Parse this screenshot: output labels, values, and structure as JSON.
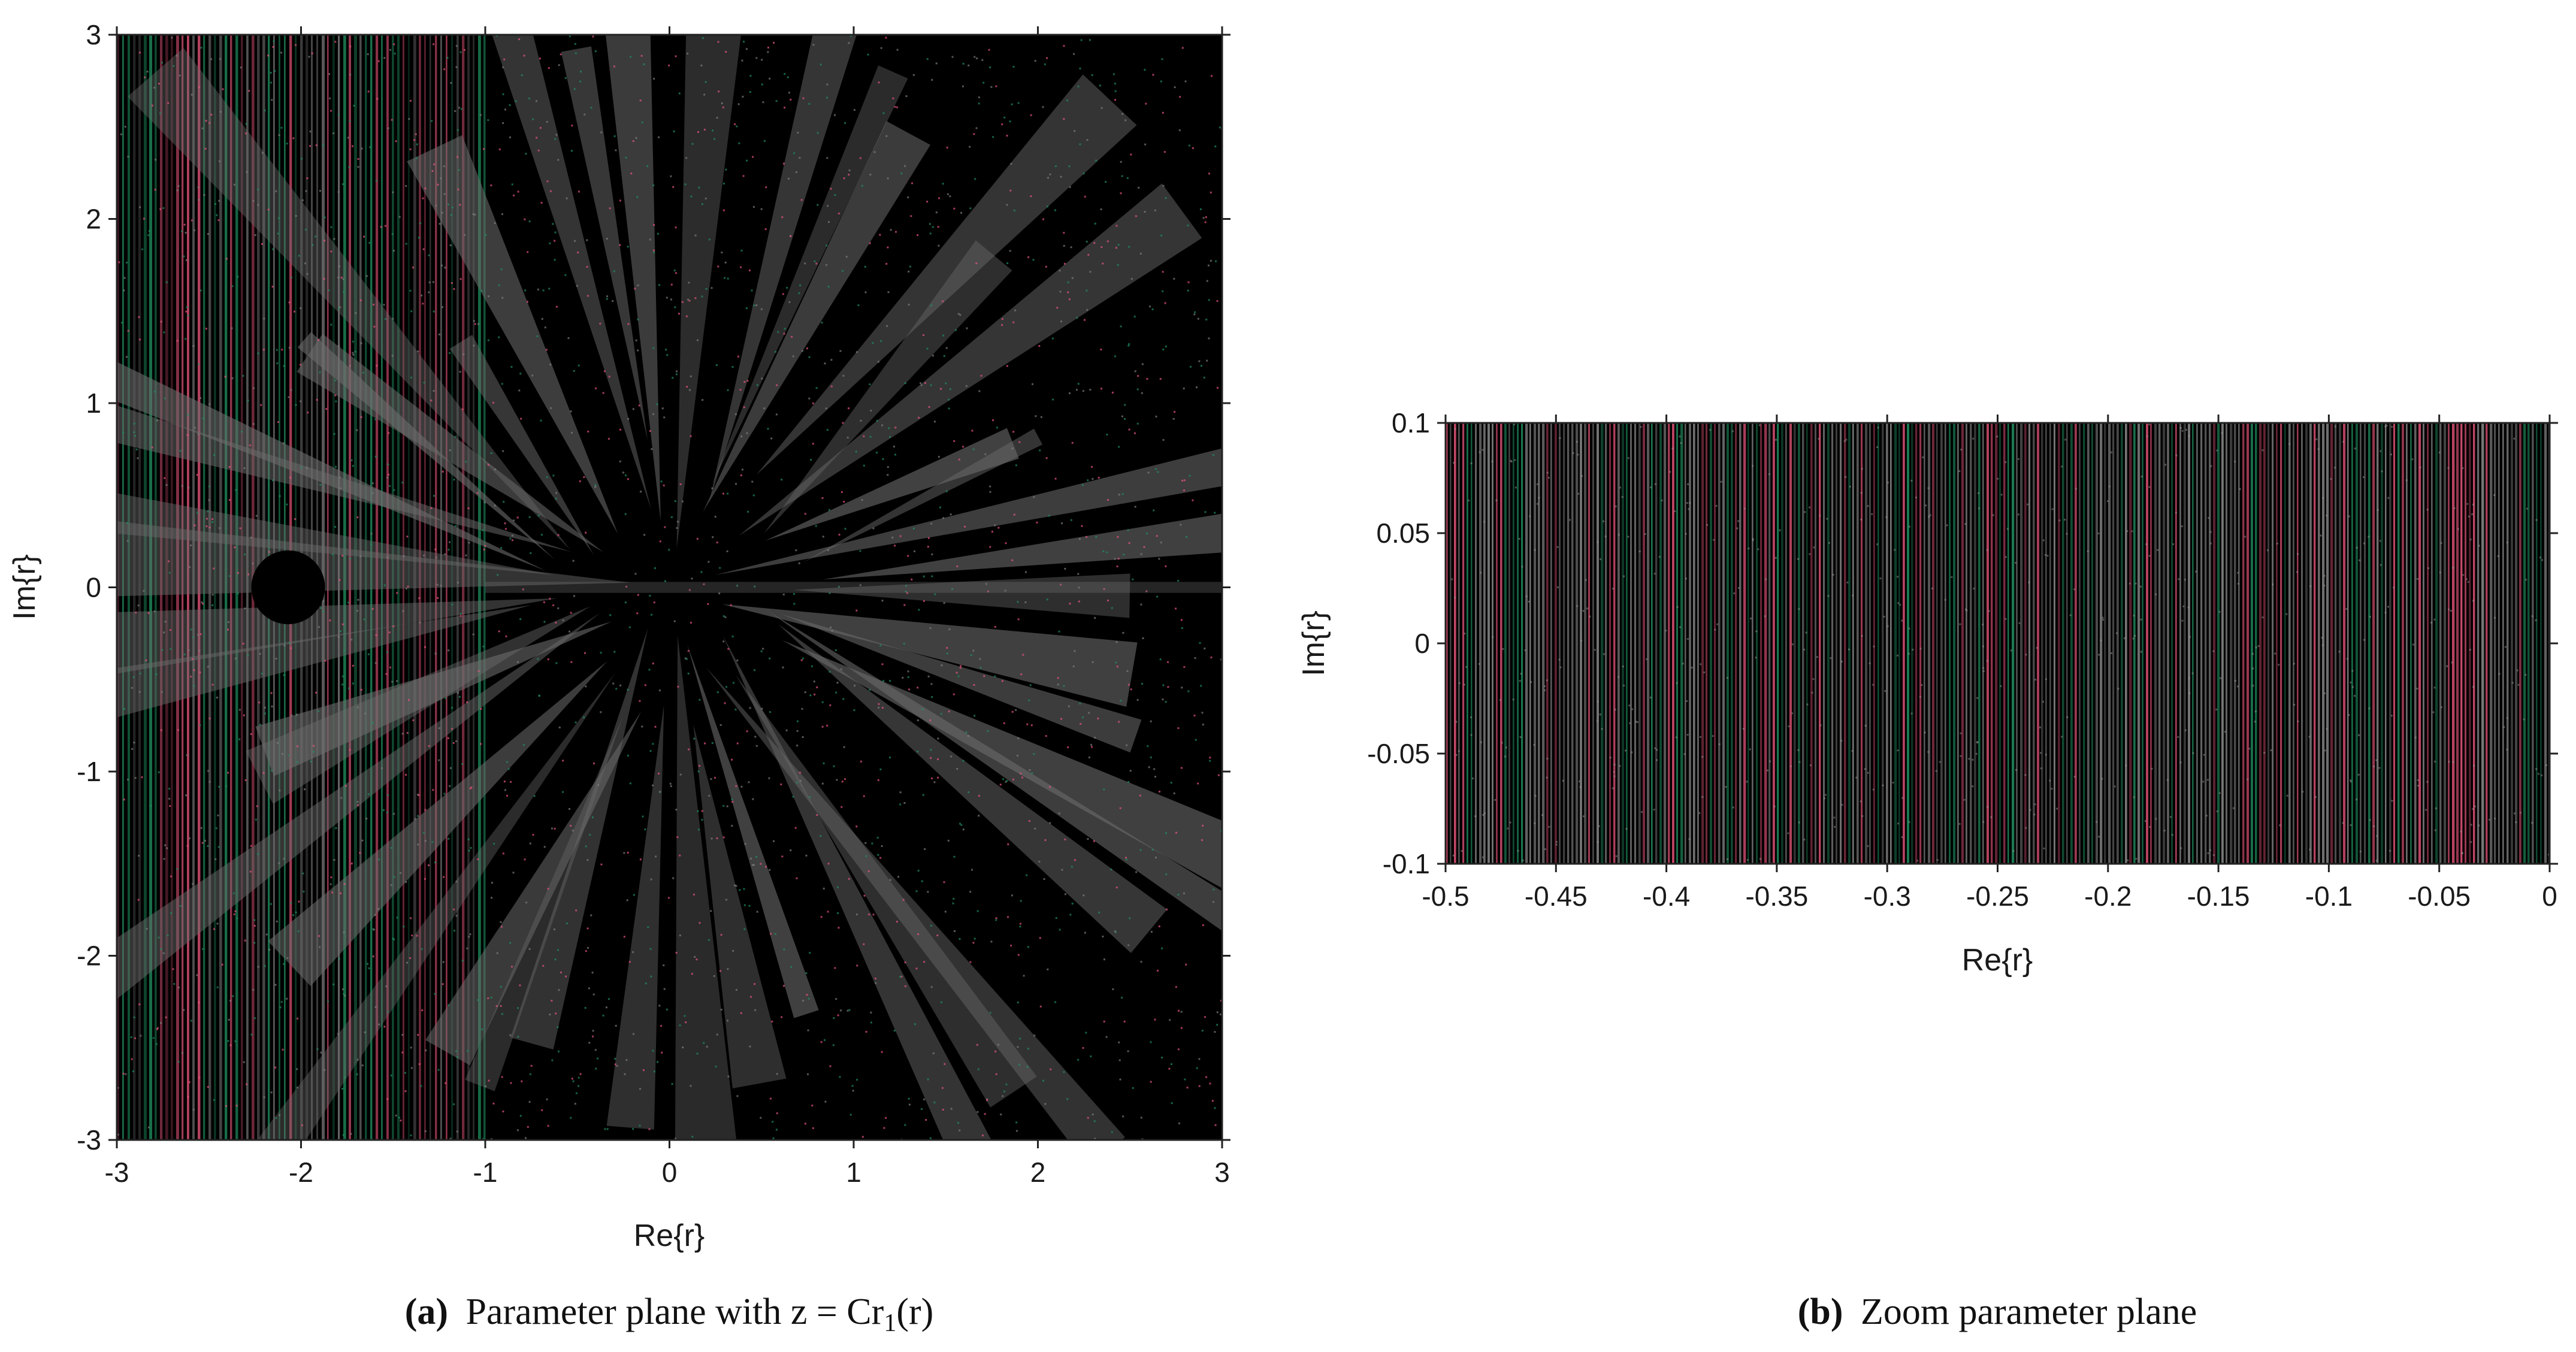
{
  "chart_data": [
    {
      "panel": "a",
      "type": "heatmap",
      "title": "",
      "xlabel": "Re{r}",
      "ylabel": "Im{r}",
      "xlim": [
        -3,
        3
      ],
      "ylim": [
        -3,
        3
      ],
      "xticks": [
        "-3",
        "-2",
        "-1",
        "0",
        "1",
        "2",
        "3"
      ],
      "yticks": [
        "-3",
        "-2",
        "-1",
        "0",
        "1",
        "2",
        "3"
      ],
      "grid": false,
      "colors": {
        "background": "#000000",
        "red": "#e8557a",
        "green": "#1f8f5f",
        "gray": "#7d7d7d"
      },
      "striped_region_x": [
        -3,
        -1
      ],
      "black_disk": {
        "center": [
          -2.07,
          0
        ],
        "radius": 0.2
      },
      "caption_label": "(a)",
      "caption_text": "Parameter plane with z = Cr",
      "caption_sub": "1",
      "caption_tail": "(r)"
    },
    {
      "panel": "b",
      "type": "heatmap",
      "title": "",
      "xlabel": "Re{r}",
      "ylabel": "Im{r}",
      "xlim": [
        -0.5,
        0
      ],
      "ylim": [
        -0.1,
        0.1
      ],
      "xticks": [
        "-0.5",
        "-0.45",
        "-0.4",
        "-0.35",
        "-0.3",
        "-0.25",
        "-0.2",
        "-0.15",
        "-0.1",
        "-0.05",
        "0"
      ],
      "yticks": [
        "-0.1",
        "-0.05",
        "0",
        "0.05",
        "0.1"
      ],
      "grid": false,
      "colors": {
        "background": "#000000",
        "red": "#e8557a",
        "green": "#1f8f5f",
        "gray": "#8a8a8a"
      },
      "striped_region_x": [
        -0.5,
        0
      ],
      "caption_label": "(b)",
      "caption_text": "Zoom parameter plane"
    }
  ]
}
